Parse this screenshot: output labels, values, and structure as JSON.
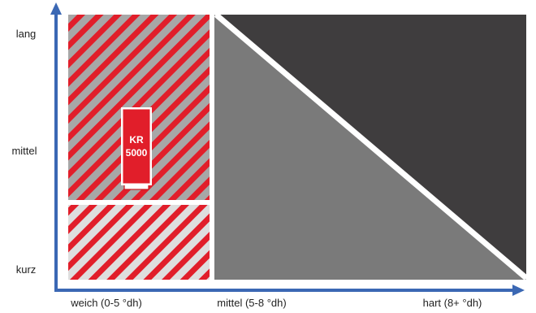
{
  "y_axis": {
    "labels": [
      "lang",
      "mittel",
      "kurz"
    ]
  },
  "x_axis": {
    "labels": [
      "weich (0-5 °dh)",
      "mittel (5-8 °dh)",
      "hart (8+ °dh)"
    ]
  },
  "device": {
    "line1": "KR",
    "line2": "5000"
  },
  "colors": {
    "axis": "#3b68b4",
    "stripe_red": "#e11e2a",
    "light_gray": "#dedede",
    "mid_gray": "#a7a7a7",
    "dark_gray": "#7a7a7a",
    "darkest_gray": "#3f3d3e",
    "device": "#e11e2a"
  }
}
